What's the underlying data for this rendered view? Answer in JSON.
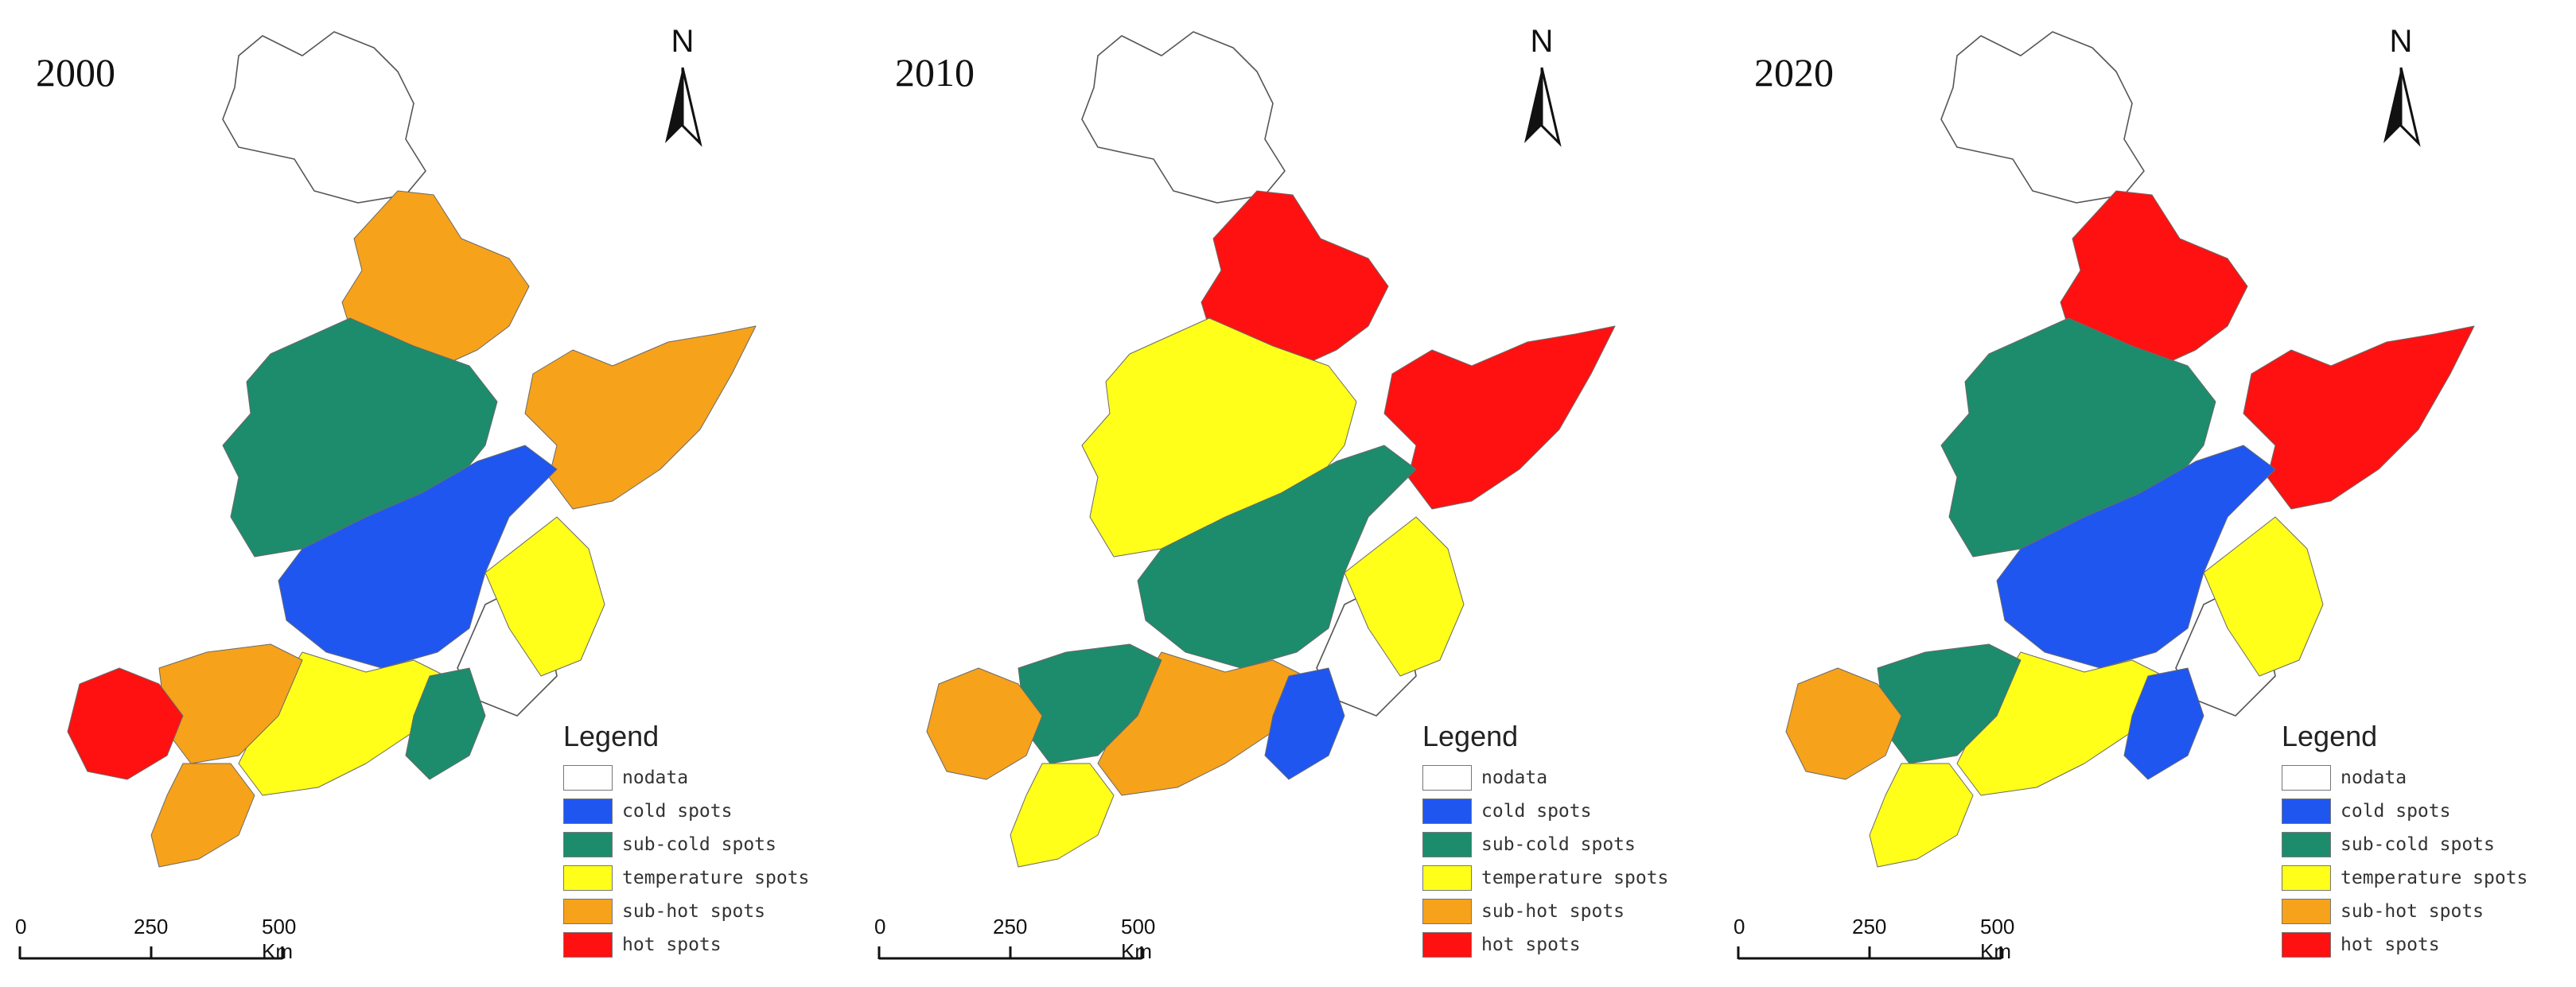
{
  "scale_bar": {
    "labels": [
      "0",
      "250",
      "500 Km"
    ]
  },
  "north_label": "N",
  "legend": {
    "title": "Legend",
    "items": [
      {
        "label": "nodata",
        "color": "#ffffff"
      },
      {
        "label": "cold spots",
        "color": "#1f56f0"
      },
      {
        "label": "sub-cold spots",
        "color": "#1c8c6c"
      },
      {
        "label": "temperature spots",
        "color": "#ffff1a"
      },
      {
        "label": "sub-hot spots",
        "color": "#f7a21b"
      },
      {
        "label": "hot spots",
        "color": "#ff1111"
      }
    ]
  },
  "maps": [
    {
      "year": "2000",
      "regions": {
        "north": "sub-hot spots",
        "northwest": "sub-cold spots",
        "northeast": "sub-hot spots",
        "central": "cold spots",
        "east": "temperature spots",
        "south": "temperature spots",
        "southwest": "sub-hot spots",
        "far_southwest": "hot spots",
        "southeast": "sub-cold spots"
      }
    },
    {
      "year": "2010",
      "regions": {
        "north": "hot spots",
        "northwest": "temperature spots",
        "northeast": "hot spots",
        "central": "sub-cold spots",
        "east": "temperature spots",
        "south": "sub-hot spots",
        "southwest": "sub-cold spots",
        "far_southwest": "sub-hot spots",
        "southeast": "cold spots"
      }
    },
    {
      "year": "2020",
      "regions": {
        "north": "hot spots",
        "northwest": "sub-cold spots",
        "northeast": "hot spots",
        "central": "cold spots",
        "east": "temperature spots",
        "south": "temperature spots",
        "southwest": "sub-cold spots",
        "far_southwest": "sub-hot spots",
        "southeast": "cold spots"
      }
    }
  ]
}
